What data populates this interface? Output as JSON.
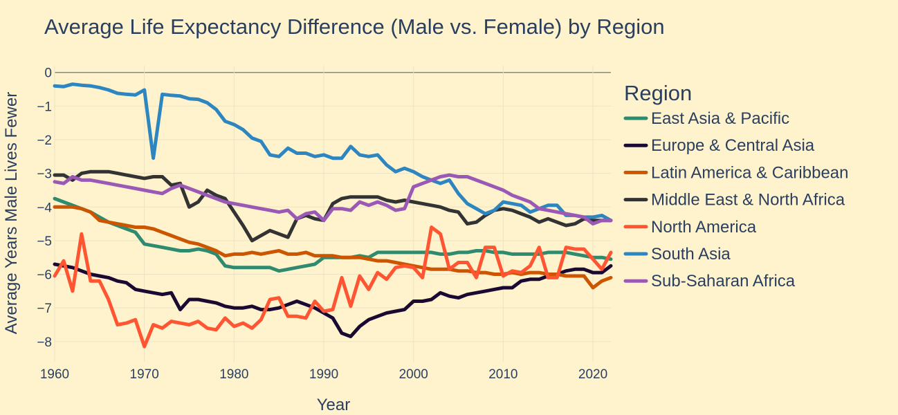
{
  "chart_data": {
    "type": "line",
    "title": "Average Life Expectancy Difference (Male vs. Female) by Region",
    "xlabel": "Year",
    "ylabel": "Average Years Male Lives Fewer",
    "xlim": [
      1960,
      2022
    ],
    "ylim": [
      -8.6,
      0.2
    ],
    "xticks": [
      1960,
      1970,
      1980,
      1990,
      2000,
      2010,
      2020
    ],
    "yticks": [
      0,
      -1,
      -2,
      -3,
      -4,
      -5,
      -6,
      -7,
      -8
    ],
    "ytick_labels": [
      "0",
      "−1",
      "−2",
      "−3",
      "−4",
      "−5",
      "−6",
      "−7",
      "−8"
    ],
    "grid": true,
    "legend_title": "Region",
    "legend_position": "right",
    "x": [
      1960,
      1961,
      1962,
      1963,
      1964,
      1965,
      1966,
      1967,
      1968,
      1969,
      1970,
      1971,
      1972,
      1973,
      1974,
      1975,
      1976,
      1977,
      1978,
      1979,
      1980,
      1981,
      1982,
      1983,
      1984,
      1985,
      1986,
      1987,
      1988,
      1989,
      1990,
      1991,
      1992,
      1993,
      1994,
      1995,
      1996,
      1997,
      1998,
      1999,
      2000,
      2001,
      2002,
      2003,
      2004,
      2005,
      2006,
      2007,
      2008,
      2009,
      2010,
      2011,
      2012,
      2013,
      2014,
      2015,
      2016,
      2017,
      2018,
      2019,
      2020,
      2021,
      2022
    ],
    "series": [
      {
        "name": "East Asia & Pacific",
        "color": "#2e8b6f",
        "values": [
          -3.75,
          -3.85,
          -3.95,
          -4.05,
          -4.15,
          -4.3,
          -4.45,
          -4.55,
          -4.65,
          -4.75,
          -5.1,
          -5.15,
          -5.2,
          -5.25,
          -5.3,
          -5.3,
          -5.25,
          -5.3,
          -5.4,
          -5.75,
          -5.8,
          -5.8,
          -5.8,
          -5.8,
          -5.8,
          -5.9,
          -5.85,
          -5.8,
          -5.75,
          -5.7,
          -5.5,
          -5.5,
          -5.5,
          -5.5,
          -5.45,
          -5.5,
          -5.35,
          -5.35,
          -5.35,
          -5.35,
          -5.35,
          -5.35,
          -5.35,
          -5.4,
          -5.4,
          -5.35,
          -5.35,
          -5.3,
          -5.3,
          -5.35,
          -5.35,
          -5.4,
          -5.4,
          -5.4,
          -5.4,
          -5.35,
          -5.35,
          -5.35,
          -5.4,
          -5.45,
          -5.5,
          -5.5,
          -5.55
        ]
      },
      {
        "name": "Europe & Central Asia",
        "color": "#1a0a33",
        "values": [
          -5.7,
          -5.75,
          -5.8,
          -5.9,
          -6.0,
          -6.05,
          -6.1,
          -6.2,
          -6.25,
          -6.45,
          -6.5,
          -6.55,
          -6.6,
          -6.55,
          -7.05,
          -6.75,
          -6.75,
          -6.8,
          -6.85,
          -6.95,
          -7.0,
          -7.0,
          -6.95,
          -7.05,
          -7.05,
          -7.0,
          -6.9,
          -6.8,
          -6.9,
          -7.0,
          -7.15,
          -7.3,
          -7.75,
          -7.85,
          -7.55,
          -7.35,
          -7.25,
          -7.15,
          -7.1,
          -7.05,
          -6.8,
          -6.8,
          -6.75,
          -6.55,
          -6.65,
          -6.7,
          -6.6,
          -6.55,
          -6.5,
          -6.45,
          -6.4,
          -6.4,
          -6.2,
          -6.15,
          -6.15,
          -6.05,
          -6.0,
          -5.9,
          -5.85,
          -5.85,
          -5.95,
          -5.95,
          -5.75
        ]
      },
      {
        "name": "Latin America & Caribbean",
        "color": "#cc5500",
        "values": [
          -4.0,
          -4.0,
          -4.0,
          -4.05,
          -4.15,
          -4.4,
          -4.45,
          -4.5,
          -4.55,
          -4.6,
          -4.6,
          -4.65,
          -4.75,
          -4.85,
          -4.95,
          -5.05,
          -5.1,
          -5.2,
          -5.3,
          -5.45,
          -5.4,
          -5.4,
          -5.35,
          -5.4,
          -5.35,
          -5.3,
          -5.4,
          -5.4,
          -5.35,
          -5.45,
          -5.45,
          -5.45,
          -5.5,
          -5.5,
          -5.5,
          -5.55,
          -5.6,
          -5.6,
          -5.65,
          -5.7,
          -5.75,
          -5.8,
          -5.85,
          -5.85,
          -5.85,
          -5.9,
          -5.9,
          -5.95,
          -5.95,
          -6.0,
          -6.0,
          -5.95,
          -6.0,
          -5.95,
          -5.95,
          -6.0,
          -6.0,
          -6.05,
          -6.05,
          -6.05,
          -6.4,
          -6.2,
          -6.1
        ]
      },
      {
        "name": "Middle East & North Africa",
        "color": "#333333",
        "values": [
          -3.05,
          -3.05,
          -3.2,
          -3.0,
          -2.95,
          -2.95,
          -2.95,
          -3.0,
          -3.05,
          -3.1,
          -3.15,
          -3.1,
          -3.1,
          -3.35,
          -3.3,
          -4.0,
          -3.85,
          -3.5,
          -3.65,
          -3.75,
          -4.15,
          -4.55,
          -5.0,
          -4.85,
          -4.7,
          -4.8,
          -4.9,
          -4.35,
          -4.25,
          -4.35,
          -4.4,
          -3.9,
          -3.75,
          -3.7,
          -3.7,
          -3.7,
          -3.7,
          -3.8,
          -3.85,
          -3.8,
          -3.85,
          -3.9,
          -3.95,
          -4.0,
          -4.1,
          -4.15,
          -4.5,
          -4.45,
          -4.25,
          -4.1,
          -4.05,
          -4.1,
          -4.2,
          -4.3,
          -4.45,
          -4.35,
          -4.45,
          -4.55,
          -4.5,
          -4.35,
          -4.4,
          -4.4,
          -4.4
        ]
      },
      {
        "name": "North America",
        "color": "#ff5533",
        "values": [
          -6.05,
          -5.6,
          -6.5,
          -4.8,
          -6.2,
          -6.2,
          -6.75,
          -7.5,
          -7.45,
          -7.35,
          -8.15,
          -7.5,
          -7.6,
          -7.4,
          -7.45,
          -7.5,
          -7.4,
          -7.6,
          -7.65,
          -7.3,
          -7.55,
          -7.45,
          -7.6,
          -7.35,
          -6.75,
          -6.7,
          -7.25,
          -7.25,
          -7.3,
          -6.8,
          -7.1,
          -7.05,
          -6.1,
          -6.95,
          -6.05,
          -6.45,
          -5.95,
          -6.15,
          -5.8,
          -5.75,
          -5.8,
          -6.1,
          -4.6,
          -4.8,
          -5.85,
          -5.65,
          -5.65,
          -6.1,
          -5.2,
          -5.2,
          -6.05,
          -5.9,
          -5.95,
          -5.75,
          -5.2,
          -6.1,
          -6.1,
          -5.2,
          -5.25,
          -5.25,
          -5.55,
          -5.85,
          -5.35
        ]
      },
      {
        "name": "South Asia",
        "color": "#2e86c1",
        "values": [
          -0.4,
          -0.42,
          -0.35,
          -0.38,
          -0.4,
          -0.45,
          -0.52,
          -0.62,
          -0.65,
          -0.67,
          -0.52,
          -2.55,
          -0.65,
          -0.68,
          -0.7,
          -0.78,
          -0.8,
          -0.9,
          -1.1,
          -1.45,
          -1.55,
          -1.7,
          -1.95,
          -2.05,
          -2.45,
          -2.5,
          -2.25,
          -2.4,
          -2.4,
          -2.5,
          -2.45,
          -2.55,
          -2.55,
          -2.2,
          -2.45,
          -2.5,
          -2.45,
          -2.75,
          -2.95,
          -2.85,
          -2.95,
          -3.1,
          -3.2,
          -3.3,
          -3.2,
          -3.6,
          -3.9,
          -4.05,
          -4.2,
          -4.1,
          -3.85,
          -3.9,
          -3.95,
          -4.15,
          -4.05,
          -3.95,
          -3.95,
          -4.25,
          -4.25,
          -4.3,
          -4.3,
          -4.25,
          -4.4
        ]
      },
      {
        "name": "Sub-Saharan Africa",
        "color": "#9b59b6",
        "values": [
          -3.25,
          -3.3,
          -3.1,
          -3.2,
          -3.2,
          -3.25,
          -3.3,
          -3.35,
          -3.4,
          -3.45,
          -3.5,
          -3.55,
          -3.6,
          -3.45,
          -3.35,
          -3.45,
          -3.55,
          -3.65,
          -3.75,
          -3.85,
          -3.9,
          -3.95,
          -4.0,
          -4.05,
          -4.1,
          -4.15,
          -4.1,
          -4.35,
          -4.2,
          -4.15,
          -4.4,
          -4.05,
          -4.05,
          -4.1,
          -3.85,
          -3.95,
          -3.85,
          -3.95,
          -4.1,
          -4.05,
          -3.4,
          -3.3,
          -3.2,
          -3.1,
          -3.05,
          -3.1,
          -3.1,
          -3.2,
          -3.3,
          -3.4,
          -3.5,
          -3.65,
          -3.75,
          -3.85,
          -4.05,
          -4.1,
          -4.15,
          -4.2,
          -4.25,
          -4.3,
          -4.5,
          -4.4,
          -4.4
        ]
      }
    ]
  }
}
